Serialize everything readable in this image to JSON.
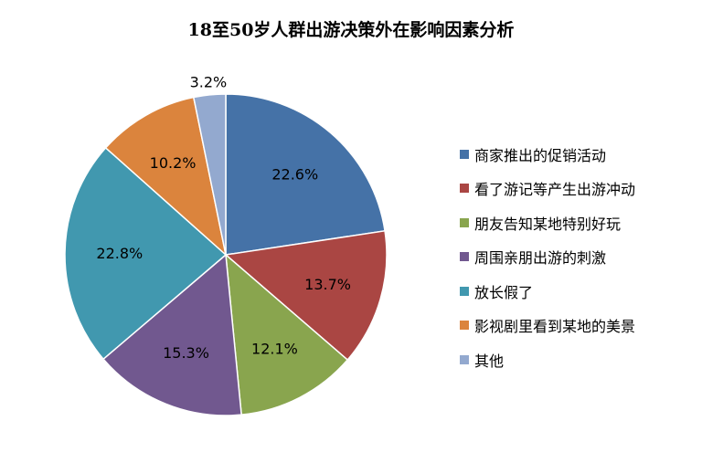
{
  "chart_data": {
    "type": "pie",
    "title": "18至50岁人群出游决策外在影响因素分析",
    "legend_position": "right",
    "start_angle_deg": 0,
    "direction": "clockwise",
    "slices": [
      {
        "label": "商家推出的促销活动",
        "value": 22.6,
        "display": "22.6%",
        "color": "#4572A7"
      },
      {
        "label": "看了游记等产生出游冲动",
        "value": 13.7,
        "display": "13.7%",
        "color": "#AA4643"
      },
      {
        "label": "朋友告知某地特别好玩",
        "value": 12.1,
        "display": "12.1%",
        "color": "#89A54E"
      },
      {
        "label": "周围亲朋出游的刺激",
        "value": 15.3,
        "display": "15.3%",
        "color": "#71588F"
      },
      {
        "label": "放长假了",
        "value": 22.8,
        "display": "22.8%",
        "color": "#4198AF"
      },
      {
        "label": "影视剧里看到某地的美景",
        "value": 10.2,
        "display": "10.2%",
        "color": "#DB843D"
      },
      {
        "label": "其他",
        "value": 3.2,
        "display": "3.2%",
        "color": "#93A9CF"
      }
    ]
  }
}
